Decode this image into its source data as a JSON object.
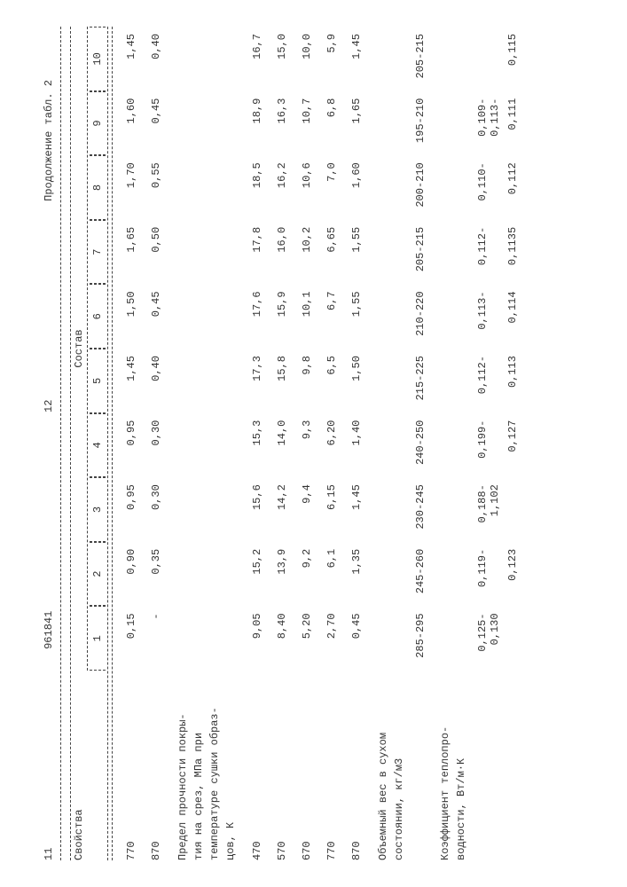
{
  "header": {
    "page_left": "11",
    "doc_number": "961841",
    "page_right": "12",
    "continuation": "Продолжение табл. 2"
  },
  "table": {
    "col_label": "Свойства",
    "group_label": "Состав",
    "col_nums": [
      "1",
      "2",
      "3",
      "4",
      "5",
      "6",
      "7",
      "8",
      "9",
      "10"
    ],
    "section1_rows": [
      {
        "label": "770",
        "v": [
          "0,15",
          "0,90",
          "0,95",
          "0,95",
          "1,45",
          "1,50",
          "1,65",
          "1,70",
          "1,60",
          "1,45"
        ]
      },
      {
        "label": "870",
        "v": [
          "-",
          "0,35",
          "0,30",
          "0,30",
          "0,40",
          "0,45",
          "0,50",
          "0,55",
          "0,45",
          "0,40"
        ]
      }
    ],
    "section2_title_lines": [
      "Предел прочности покры-",
      "тия на срез, МПа при",
      "температуре сушки образ-",
      "цов, К"
    ],
    "section2_rows": [
      {
        "label": "470",
        "v": [
          "9,05",
          "15,2",
          "15,6",
          "15,3",
          "17,3",
          "17,6",
          "17,8",
          "18,5",
          "18,9",
          "16,7"
        ]
      },
      {
        "label": "570",
        "v": [
          "8,40",
          "13,9",
          "14,2",
          "14,0",
          "15,8",
          "15,9",
          "16,0",
          "16,2",
          "16,3",
          "15,0"
        ]
      },
      {
        "label": "670",
        "v": [
          "5,20",
          "9,2",
          "9,4",
          "9,3",
          "9,8",
          "10,1",
          "10,2",
          "10,6",
          "10,7",
          "10,0"
        ]
      },
      {
        "label": "770",
        "v": [
          "2,70",
          "6,1",
          "6,15",
          "6,20",
          "6,5",
          "6,7",
          "6,65",
          "7,0",
          "6,8",
          "5,9"
        ]
      },
      {
        "label": "870",
        "v": [
          "0,45",
          "1,35",
          "1,45",
          "1,40",
          "1,50",
          "1,55",
          "1,55",
          "1,60",
          "1,65",
          "1,45"
        ]
      }
    ],
    "section3_title_lines": [
      "Объемный вес в сухом",
      "состоянии, кг/м3"
    ],
    "section3_row": {
      "label": "",
      "v": [
        "285-295",
        "245-260",
        "230-245",
        "240-250",
        "215-225",
        "210-220",
        "205-215",
        "200-210",
        "195-210",
        "205-215"
      ]
    },
    "section4_title_lines": [
      "Коэффициент теплопро-",
      "водности, Вт/м·К"
    ],
    "section4_row_top": {
      "label": "",
      "v": [
        "0,125-0,130",
        "0,119-",
        "0,188-1,102",
        "0,199-",
        "0,112-",
        "0,113-",
        "0,112-",
        "0,110-",
        "0,109-0,113-",
        " "
      ]
    },
    "section4_row_bot": {
      "label": "",
      "v": [
        "",
        "0,123",
        "",
        "0,127",
        "0,113",
        "0,114",
        "0,1135",
        "0,112",
        "0,111",
        "0,115"
      ]
    }
  },
  "style": {
    "font_family": "Courier New",
    "font_size_pt": 9,
    "text_color": "#333333",
    "background": "#ffffff",
    "dash_color": "#444444"
  }
}
